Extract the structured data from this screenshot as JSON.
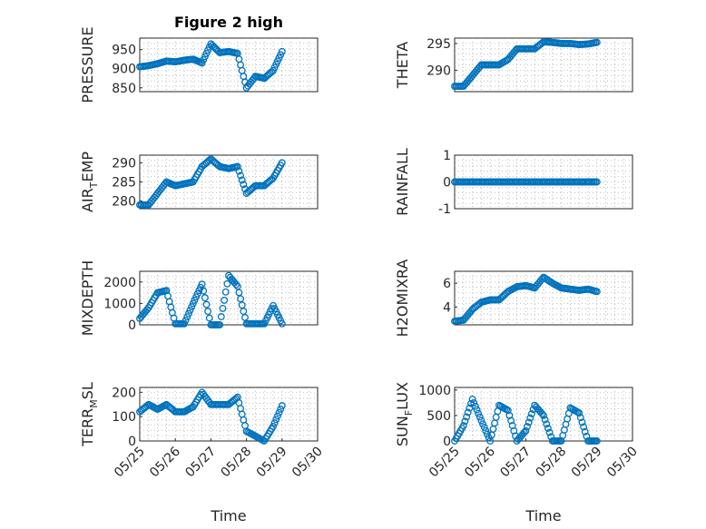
{
  "figure_title": "Figure 2 high",
  "colors": {
    "series": "#0072BD",
    "axis": "#262626",
    "grid": "#b0b0b0"
  },
  "chart_data": [
    {
      "type": "scatter",
      "ylabel": "PRESSURE",
      "ylabel_sub": "",
      "title": "Figure 2 high",
      "ylim": [
        840,
        980
      ],
      "yticks": [
        850,
        900,
        950
      ],
      "xticks": [],
      "xlabel": "",
      "xlim": [
        "05/25",
        "05/30"
      ],
      "grid": true,
      "x": [
        "05/25 00:00",
        "05/25 06:00",
        "05/25 12:00",
        "05/25 18:00",
        "05/26 00:00",
        "05/26 06:00",
        "05/26 12:00",
        "05/26 18:00",
        "05/27 00:00",
        "05/27 06:00",
        "05/27 12:00",
        "05/27 18:00",
        "05/28 00:00",
        "05/28 06:00",
        "05/28 12:00",
        "05/28 18:00",
        "05/29 00:00"
      ],
      "y": [
        905,
        908,
        913,
        920,
        918,
        922,
        925,
        915,
        965,
        942,
        945,
        940,
        850,
        880,
        875,
        895,
        945
      ]
    },
    {
      "type": "scatter",
      "ylabel": "THETA",
      "ylabel_sub": "",
      "ylim": [
        286,
        296
      ],
      "yticks": [
        290,
        295
      ],
      "xticks": [],
      "xlabel": "",
      "xlim": [
        "05/25",
        "05/30"
      ],
      "grid": true,
      "x": [
        "05/25 00:00",
        "05/25 06:00",
        "05/25 12:00",
        "05/25 18:00",
        "05/26 00:00",
        "05/26 06:00",
        "05/26 12:00",
        "05/26 18:00",
        "05/27 00:00",
        "05/27 06:00",
        "05/27 12:00",
        "05/27 18:00",
        "05/28 00:00",
        "05/28 06:00",
        "05/28 12:00",
        "05/28 18:00",
        "05/29 00:00"
      ],
      "y": [
        287,
        287,
        289,
        291,
        291,
        291,
        292,
        294,
        294,
        294,
        295.3,
        295.2,
        295,
        295,
        294.8,
        294.9,
        295.2
      ]
    },
    {
      "type": "scatter",
      "ylabel": "AIR",
      "ylabel_sub": "T",
      "ylabel_after": "EMP",
      "ylim": [
        278,
        292
      ],
      "yticks": [
        280,
        285,
        290
      ],
      "xticks": [],
      "xlabel": "",
      "xlim": [
        "05/25",
        "05/30"
      ],
      "grid": true,
      "x": [
        "05/25 00:00",
        "05/25 06:00",
        "05/25 12:00",
        "05/25 18:00",
        "05/26 00:00",
        "05/26 06:00",
        "05/26 12:00",
        "05/26 18:00",
        "05/27 00:00",
        "05/27 06:00",
        "05/27 12:00",
        "05/27 18:00",
        "05/28 00:00",
        "05/28 06:00",
        "05/28 12:00",
        "05/28 18:00",
        "05/29 00:00"
      ],
      "y": [
        279,
        279,
        282,
        285,
        284,
        284.5,
        285,
        289,
        291,
        289,
        288.5,
        289,
        282,
        284,
        284,
        286,
        290
      ]
    },
    {
      "type": "scatter",
      "ylabel": "RAINFALL",
      "ylabel_sub": "",
      "ylim": [
        -1,
        1
      ],
      "yticks": [
        -1,
        0,
        1
      ],
      "xticks": [],
      "xlabel": "",
      "xlim": [
        "05/25",
        "05/30"
      ],
      "grid": true,
      "x": [
        "05/25 00:00",
        "05/25 06:00",
        "05/25 12:00",
        "05/25 18:00",
        "05/26 00:00",
        "05/26 06:00",
        "05/26 12:00",
        "05/26 18:00",
        "05/27 00:00",
        "05/27 06:00",
        "05/27 12:00",
        "05/27 18:00",
        "05/28 00:00",
        "05/28 06:00",
        "05/28 12:00",
        "05/28 18:00",
        "05/29 00:00"
      ],
      "y": [
        0,
        0,
        0,
        0,
        0,
        0,
        0,
        0,
        0,
        0,
        0,
        0,
        0,
        0,
        0,
        0,
        0
      ]
    },
    {
      "type": "scatter",
      "ylabel": "MIXDEPTH",
      "ylabel_sub": "",
      "ylim": [
        0,
        2500
      ],
      "yticks": [
        0,
        1000,
        2000
      ],
      "xticks": [],
      "xlabel": "",
      "xlim": [
        "05/25",
        "05/30"
      ],
      "grid": true,
      "x": [
        "05/25 00:00",
        "05/25 06:00",
        "05/25 12:00",
        "05/25 18:00",
        "05/26 00:00",
        "05/26 06:00",
        "05/26 12:00",
        "05/26 18:00",
        "05/27 00:00",
        "05/27 06:00",
        "05/27 12:00",
        "05/27 18:00",
        "05/28 00:00",
        "05/28 06:00",
        "05/28 12:00",
        "05/28 18:00",
        "05/29 00:00"
      ],
      "y": [
        300,
        800,
        1500,
        1600,
        50,
        50,
        1000,
        1900,
        0,
        0,
        2300,
        1800,
        50,
        50,
        50,
        900,
        50
      ]
    },
    {
      "type": "scatter",
      "ylabel": "H2OMIXRA",
      "ylabel_sub": "",
      "ylim": [
        2.5,
        7
      ],
      "yticks": [
        4,
        6
      ],
      "xticks": [],
      "xlabel": "",
      "xlim": [
        "05/25",
        "05/30"
      ],
      "grid": true,
      "x": [
        "05/25 00:00",
        "05/25 06:00",
        "05/25 12:00",
        "05/25 18:00",
        "05/26 00:00",
        "05/26 06:00",
        "05/26 12:00",
        "05/26 18:00",
        "05/27 00:00",
        "05/27 06:00",
        "05/27 12:00",
        "05/27 18:00",
        "05/28 00:00",
        "05/28 06:00",
        "05/28 12:00",
        "05/28 18:00",
        "05/29 00:00"
      ],
      "y": [
        2.8,
        2.9,
        3.8,
        4.4,
        4.6,
        4.6,
        5.3,
        5.7,
        5.8,
        5.6,
        6.5,
        6.0,
        5.6,
        5.5,
        5.4,
        5.5,
        5.3
      ]
    },
    {
      "type": "scatter",
      "ylabel": "TERR",
      "ylabel_sub": "M",
      "ylabel_after": "SL",
      "ylim": [
        0,
        220
      ],
      "yticks": [
        0,
        100,
        200
      ],
      "xticks": [
        "05/25",
        "05/26",
        "05/27",
        "05/28",
        "05/29",
        "05/30"
      ],
      "xlabel": "Time",
      "xlim": [
        "05/25",
        "05/30"
      ],
      "grid": true,
      "x": [
        "05/25 00:00",
        "05/25 06:00",
        "05/25 12:00",
        "05/25 18:00",
        "05/26 00:00",
        "05/26 06:00",
        "05/26 12:00",
        "05/26 18:00",
        "05/27 00:00",
        "05/27 06:00",
        "05/27 12:00",
        "05/27 18:00",
        "05/28 00:00",
        "05/28 06:00",
        "05/28 12:00",
        "05/28 18:00",
        "05/29 00:00"
      ],
      "y": [
        120,
        150,
        130,
        150,
        120,
        120,
        140,
        200,
        150,
        150,
        150,
        180,
        40,
        20,
        0,
        60,
        145
      ]
    },
    {
      "type": "scatter",
      "ylabel": "SUN",
      "ylabel_sub": "F",
      "ylabel_after": "LUX",
      "ylim": [
        0,
        1050
      ],
      "yticks": [
        0,
        500,
        1000
      ],
      "xticks": [
        "05/25",
        "05/26",
        "05/27",
        "05/28",
        "05/29",
        "05/30"
      ],
      "xlabel": "Time",
      "xlim": [
        "05/25",
        "05/30"
      ],
      "grid": true,
      "x": [
        "05/25 00:00",
        "05/25 06:00",
        "05/25 12:00",
        "05/25 18:00",
        "05/26 00:00",
        "05/26 06:00",
        "05/26 12:00",
        "05/26 18:00",
        "05/27 00:00",
        "05/27 06:00",
        "05/27 12:00",
        "05/27 18:00",
        "05/28 00:00",
        "05/28 06:00",
        "05/28 12:00",
        "05/28 18:00",
        "05/29 00:00"
      ],
      "y": [
        0,
        300,
        820,
        400,
        0,
        700,
        600,
        0,
        200,
        700,
        500,
        0,
        0,
        650,
        550,
        0,
        0
      ]
    }
  ]
}
